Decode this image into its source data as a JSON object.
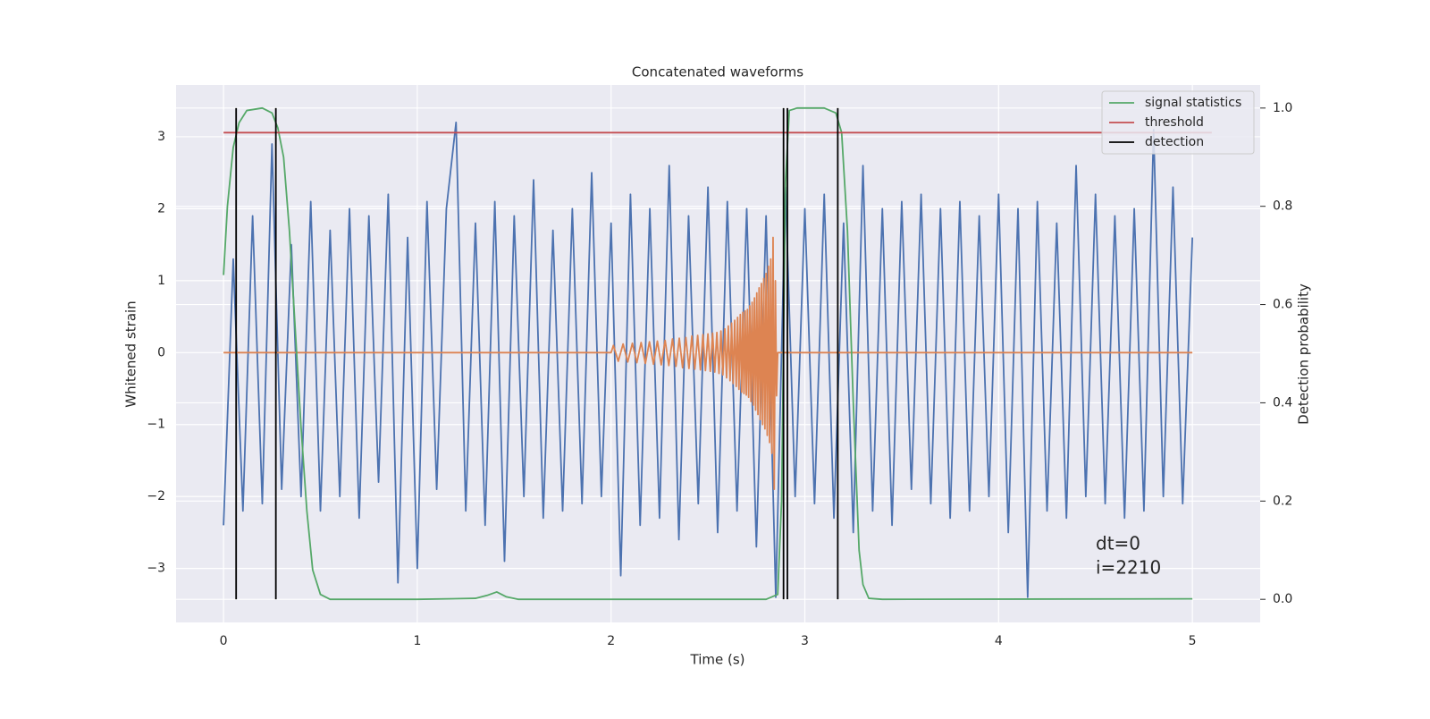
{
  "chart_data": {
    "type": "line",
    "title": "Concatenated waveforms",
    "xlabel": "Time (s)",
    "ylabel": "Whitened strain",
    "y2label": "Detection probability",
    "xlim": [
      -0.245,
      5.35
    ],
    "ylim": [
      -3.75,
      3.72
    ],
    "y2lim": [
      -0.047,
      1.047
    ],
    "xticks": [
      0,
      1,
      2,
      3,
      4,
      5
    ],
    "yticks": [
      {
        "value": -3,
        "label": "−3"
      },
      {
        "value": -2,
        "label": "−2"
      },
      {
        "value": -1,
        "label": "−1"
      },
      0,
      1,
      2,
      3
    ],
    "y2ticks": [
      {
        "value": 0,
        "label": "0.0"
      },
      0.2,
      0.4,
      0.6,
      0.8,
      {
        "value": 1,
        "label": "1.0"
      }
    ],
    "grid": true,
    "legend": "upper right",
    "annotations": [
      "dt=0",
      "i=2210"
    ],
    "series": [
      {
        "color": "#4c72b0",
        "x": [
          0,
          0.05,
          0.1,
          0.15,
          0.2,
          0.25,
          0.3,
          0.35,
          0.4,
          0.45,
          0.5,
          0.55,
          0.6,
          0.65,
          0.7,
          0.75,
          0.8,
          0.85,
          0.9,
          0.95,
          1.0,
          1.05,
          1.1,
          1.15,
          1.2,
          1.25,
          1.3,
          1.35,
          1.4,
          1.45,
          1.5,
          1.55,
          1.6,
          1.65,
          1.7,
          1.75,
          1.8,
          1.85,
          1.9,
          1.95,
          2.0,
          2.05,
          2.1,
          2.15,
          2.2,
          2.25,
          2.3,
          2.35,
          2.4,
          2.45,
          2.5,
          2.55,
          2.6,
          2.65,
          2.7,
          2.75,
          2.8,
          2.85,
          2.9,
          2.95,
          3.0,
          3.05,
          3.1,
          3.15,
          3.2,
          3.25,
          3.3,
          3.35,
          3.4,
          3.45,
          3.5,
          3.55,
          3.6,
          3.65,
          3.7,
          3.75,
          3.8,
          3.85,
          3.9,
          3.95,
          4.0,
          4.05,
          4.1,
          4.15,
          4.2,
          4.25,
          4.3,
          4.35,
          4.4,
          4.45,
          4.5,
          4.55,
          4.6,
          4.65,
          4.7,
          4.75,
          4.8,
          4.85,
          4.9,
          4.95,
          5.0
        ],
        "values": [
          -2.4,
          1.3,
          -2.2,
          1.9,
          -2.1,
          2.9,
          -1.9,
          1.5,
          -2.0,
          2.1,
          -2.2,
          1.7,
          -2.0,
          2.0,
          -2.3,
          1.9,
          -1.8,
          2.2,
          -3.2,
          1.6,
          -3.0,
          2.1,
          -1.9,
          2.0,
          3.2,
          -2.2,
          1.8,
          -2.4,
          2.1,
          -2.9,
          1.9,
          -2.0,
          2.4,
          -2.3,
          1.7,
          -2.2,
          2.0,
          -2.1,
          2.5,
          -2.0,
          1.8,
          -3.1,
          2.2,
          -2.4,
          2.0,
          -2.3,
          2.6,
          -2.6,
          1.9,
          -2.1,
          2.3,
          -2.5,
          2.1,
          -2.2,
          2.0,
          -2.7,
          1.9,
          -3.4,
          2.3,
          -2.0,
          2.0,
          -2.1,
          2.2,
          -2.3,
          1.8,
          -2.5,
          2.6,
          -2.2,
          2.0,
          -2.4,
          2.1,
          -1.9,
          2.2,
          -2.1,
          2.0,
          -2.3,
          2.1,
          -2.2,
          1.9,
          -2.0,
          2.2,
          -2.5,
          2.0,
          -3.4,
          2.1,
          -2.2,
          1.8,
          -2.3,
          2.6,
          -2.0,
          2.2,
          -2.1,
          1.9,
          -2.3,
          2.0,
          -2.2,
          3.1,
          -2.0,
          2.3,
          -2.1,
          1.6
        ]
      },
      {
        "color": "#dd8452",
        "x": [
          0,
          2.0,
          2.012,
          2.037,
          2.062,
          2.086,
          2.11,
          2.133,
          2.155,
          2.177,
          2.198,
          2.219,
          2.239,
          2.259,
          2.279,
          2.298,
          2.317,
          2.335,
          2.352,
          2.369,
          2.386,
          2.402,
          2.417,
          2.432,
          2.447,
          2.461,
          2.474,
          2.487,
          2.5,
          2.512,
          2.524,
          2.535,
          2.546,
          2.557,
          2.567,
          2.577,
          2.587,
          2.596,
          2.605,
          2.614,
          2.622,
          2.63,
          2.638,
          2.646,
          2.653,
          2.66,
          2.667,
          2.674,
          2.68,
          2.686,
          2.692,
          2.698,
          2.704,
          2.71,
          2.716,
          2.722,
          2.728,
          2.734,
          2.74,
          2.746,
          2.752,
          2.758,
          2.764,
          2.77,
          2.776,
          2.782,
          2.788,
          2.794,
          2.8,
          2.806,
          2.812,
          2.818,
          2.824,
          2.83,
          2.836,
          2.842,
          2.848,
          2.854,
          2.86,
          5.0
        ],
        "values": [
          0,
          0,
          0.1,
          -0.12,
          0.12,
          -0.13,
          0.13,
          -0.14,
          0.14,
          -0.15,
          0.15,
          -0.16,
          0.16,
          -0.17,
          0.17,
          -0.18,
          0.19,
          -0.19,
          0.2,
          -0.21,
          0.21,
          -0.22,
          0.23,
          -0.23,
          0.24,
          -0.24,
          0.25,
          -0.25,
          0.26,
          -0.26,
          0.27,
          -0.27,
          0.28,
          -0.29,
          0.3,
          -0.31,
          0.33,
          -0.35,
          0.37,
          -0.39,
          0.41,
          -0.43,
          0.45,
          -0.47,
          0.49,
          -0.51,
          0.53,
          -0.55,
          0.56,
          -0.57,
          0.58,
          -0.59,
          0.6,
          -0.62,
          0.65,
          -0.68,
          0.7,
          -0.73,
          0.76,
          -0.8,
          0.83,
          -0.86,
          0.9,
          -0.93,
          0.96,
          -1.0,
          1.03,
          -1.06,
          1.1,
          -1.15,
          1.2,
          -1.25,
          1.3,
          -1.4,
          1.6,
          -1.9,
          1.0,
          -0.6,
          0,
          0
        ]
      },
      {
        "name": "signal statistics",
        "color": "#55a868",
        "axis": "y2",
        "x": [
          0,
          0.02,
          0.05,
          0.08,
          0.12,
          0.2,
          0.25,
          0.28,
          0.31,
          0.34,
          0.37,
          0.4,
          0.43,
          0.46,
          0.5,
          0.55,
          1.0,
          1.3,
          1.36,
          1.41,
          1.46,
          1.52,
          2.0,
          2.8,
          2.86,
          2.88,
          2.9,
          2.92,
          2.96,
          3.1,
          3.16,
          3.19,
          3.22,
          3.25,
          3.28,
          3.3,
          3.33,
          3.4,
          5.0
        ],
        "values": [
          0.66,
          0.8,
          0.92,
          0.97,
          0.995,
          1.0,
          0.99,
          0.96,
          0.9,
          0.75,
          0.55,
          0.35,
          0.18,
          0.06,
          0.01,
          0.0,
          0.0,
          0.002,
          0.008,
          0.015,
          0.005,
          0.0,
          0.0,
          0.0,
          0.01,
          0.2,
          0.85,
          0.995,
          1.0,
          1.0,
          0.99,
          0.95,
          0.75,
          0.4,
          0.1,
          0.03,
          0.002,
          0.0,
          0.001
        ]
      },
      {
        "name": "threshold",
        "color": "#c44e52",
        "axis": "y2",
        "x": [
          0,
          5.1
        ],
        "values": [
          0.95,
          0.95
        ]
      },
      {
        "name": "detection",
        "color": "#000000",
        "axis": "y2",
        "type": "vline",
        "x": [
          0.065,
          0.27,
          2.89,
          2.91,
          3.17
        ],
        "ymin": 0,
        "ymax": 1
      }
    ]
  }
}
